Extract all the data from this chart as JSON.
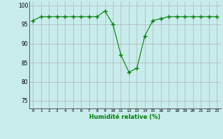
{
  "x": [
    0,
    1,
    2,
    3,
    4,
    5,
    6,
    7,
    8,
    9,
    10,
    11,
    12,
    13,
    14,
    15,
    16,
    17,
    18,
    19,
    20,
    21,
    22,
    23
  ],
  "y": [
    96,
    97,
    97,
    97,
    97,
    97,
    97,
    97,
    97,
    98.5,
    95,
    87,
    82.5,
    83.5,
    92,
    96,
    96.5,
    97,
    97,
    97,
    97,
    97,
    97,
    97
  ],
  "line_color": "#008000",
  "marker_color": "#008000",
  "bg_color": "#c8ecec",
  "grid_color": "#b0b0b0",
  "xlabel": "Humidité relative (%)",
  "xlabel_color": "#008000",
  "ylim": [
    73,
    101
  ],
  "xlim": [
    -0.5,
    23.5
  ],
  "yticks": [
    75,
    80,
    85,
    90,
    95,
    100
  ],
  "xtick_labels": [
    "0",
    "1",
    "2",
    "3",
    "4",
    "5",
    "6",
    "7",
    "8",
    "9",
    "10",
    "11",
    "12",
    "13",
    "14",
    "15",
    "16",
    "17",
    "18",
    "19",
    "20",
    "21",
    "22",
    "23"
  ],
  "figsize": [
    3.2,
    2.0
  ],
  "dpi": 100
}
